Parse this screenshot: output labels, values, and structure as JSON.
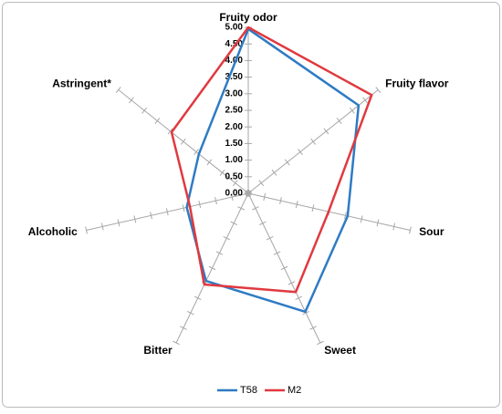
{
  "chart_data": {
    "type": "radar",
    "categories": [
      "Fruity odor",
      "Fruity flavor",
      "Sour",
      "Sweet",
      "Bitter",
      "Alcoholic",
      "Astringent*"
    ],
    "series": [
      {
        "name": "T58",
        "color": "#2e7bc4",
        "values": [
          4.95,
          4.25,
          3.07,
          3.96,
          2.93,
          1.9,
          1.9
        ]
      },
      {
        "name": "M2",
        "color": "#e0393e",
        "values": [
          5.0,
          4.75,
          2.48,
          3.3,
          3.05,
          1.8,
          2.95
        ]
      }
    ],
    "ylim": [
      0,
      5
    ],
    "yticks": [
      {
        "value": 0,
        "label": "0.00"
      },
      {
        "value": 0.5,
        "label": "0.50"
      },
      {
        "value": 1,
        "label": "1.00"
      },
      {
        "value": 1.5,
        "label": "1.50"
      },
      {
        "value": 2,
        "label": "2.00"
      },
      {
        "value": 2.5,
        "label": "2.50"
      },
      {
        "value": 3,
        "label": "3.00"
      },
      {
        "value": 3.5,
        "label": "3.50"
      },
      {
        "value": 4,
        "label": "4.00"
      },
      {
        "value": 4.5,
        "label": "4.50"
      },
      {
        "value": 5,
        "label": "5.00"
      }
    ],
    "legend": "bottom"
  }
}
